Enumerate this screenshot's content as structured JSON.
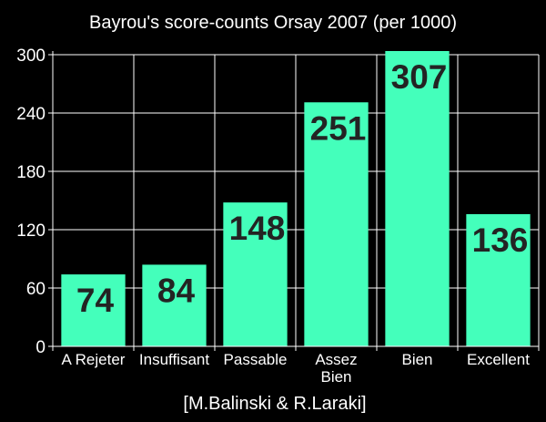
{
  "colors": {
    "background": "#000000",
    "bar": "#44ffbb",
    "grid": "#ffffff",
    "text": "#ffffff",
    "data_label": "#232323"
  },
  "credit": "[M.Balinski & R.Laraki]",
  "chart_data": {
    "type": "bar",
    "title": "Bayrou's score-counts Orsay 2007 (per 1000)",
    "xlabel": "",
    "ylabel": "",
    "categories": [
      "A Rejeter",
      "Insuffisant",
      "Passable",
      "Assez Bien",
      "Bien",
      "Excellent"
    ],
    "category_lines": [
      [
        "A Rejeter"
      ],
      [
        "Insuffisant"
      ],
      [
        "Passable"
      ],
      [
        "Assez",
        "Bien"
      ],
      [
        "Bien"
      ],
      [
        "Excellent"
      ]
    ],
    "values": [
      74,
      84,
      148,
      251,
      307,
      136
    ],
    "data_labels": [
      "74",
      "84",
      "148",
      "251",
      "307",
      "136"
    ],
    "ylim": [
      0,
      300
    ],
    "yticks": [
      0,
      60,
      120,
      180,
      240,
      300
    ],
    "ytick_labels": [
      "0",
      "60",
      "120",
      "180",
      "240",
      "300"
    ],
    "grid": true,
    "legend": "none"
  }
}
